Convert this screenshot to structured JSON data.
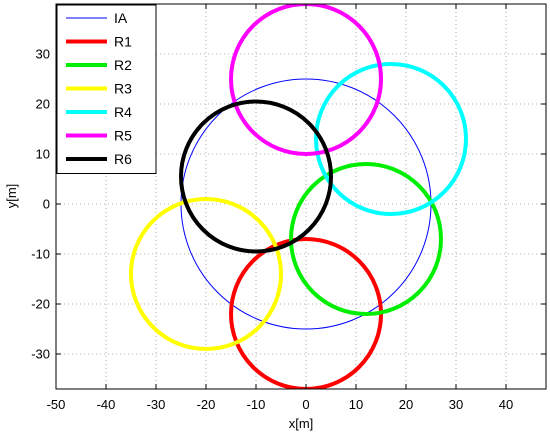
{
  "chart_data": {
    "type": "line",
    "xlabel": "x[m]",
    "ylabel": "y[m]",
    "xlim": [
      -50,
      48
    ],
    "ylim": [
      -37,
      40
    ],
    "xticks": [
      -50,
      -40,
      -30,
      -20,
      -10,
      0,
      10,
      20,
      30,
      40
    ],
    "yticks": [
      -30,
      -20,
      -10,
      0,
      10,
      20,
      30
    ],
    "grid": true,
    "grid_style": "dotted",
    "legend_position": "top-left",
    "series": [
      {
        "name": "IA",
        "shape": "circle",
        "center": [
          0,
          0
        ],
        "radius": 25,
        "color": "#0000ff",
        "line_width": "thin"
      },
      {
        "name": "R1",
        "shape": "circle",
        "center": [
          0,
          -22
        ],
        "radius": 15,
        "color": "#ff0000",
        "line_width": "thick"
      },
      {
        "name": "R2",
        "shape": "circle",
        "center": [
          12,
          -7
        ],
        "radius": 15,
        "color": "#00ee00",
        "line_width": "thick"
      },
      {
        "name": "R3",
        "shape": "circle",
        "center": [
          -20,
          -14
        ],
        "radius": 15,
        "color": "#ffff00",
        "line_width": "thick"
      },
      {
        "name": "R4",
        "shape": "circle",
        "center": [
          17,
          13
        ],
        "radius": 15,
        "color": "#00ffff",
        "line_width": "thick"
      },
      {
        "name": "R5",
        "shape": "circle",
        "center": [
          0,
          25
        ],
        "radius": 15,
        "color": "#ff00ff",
        "line_width": "thick"
      },
      {
        "name": "R6",
        "shape": "circle",
        "center": [
          -10,
          5.5
        ],
        "radius": 15,
        "color": "#000000",
        "line_width": "thick"
      }
    ]
  }
}
